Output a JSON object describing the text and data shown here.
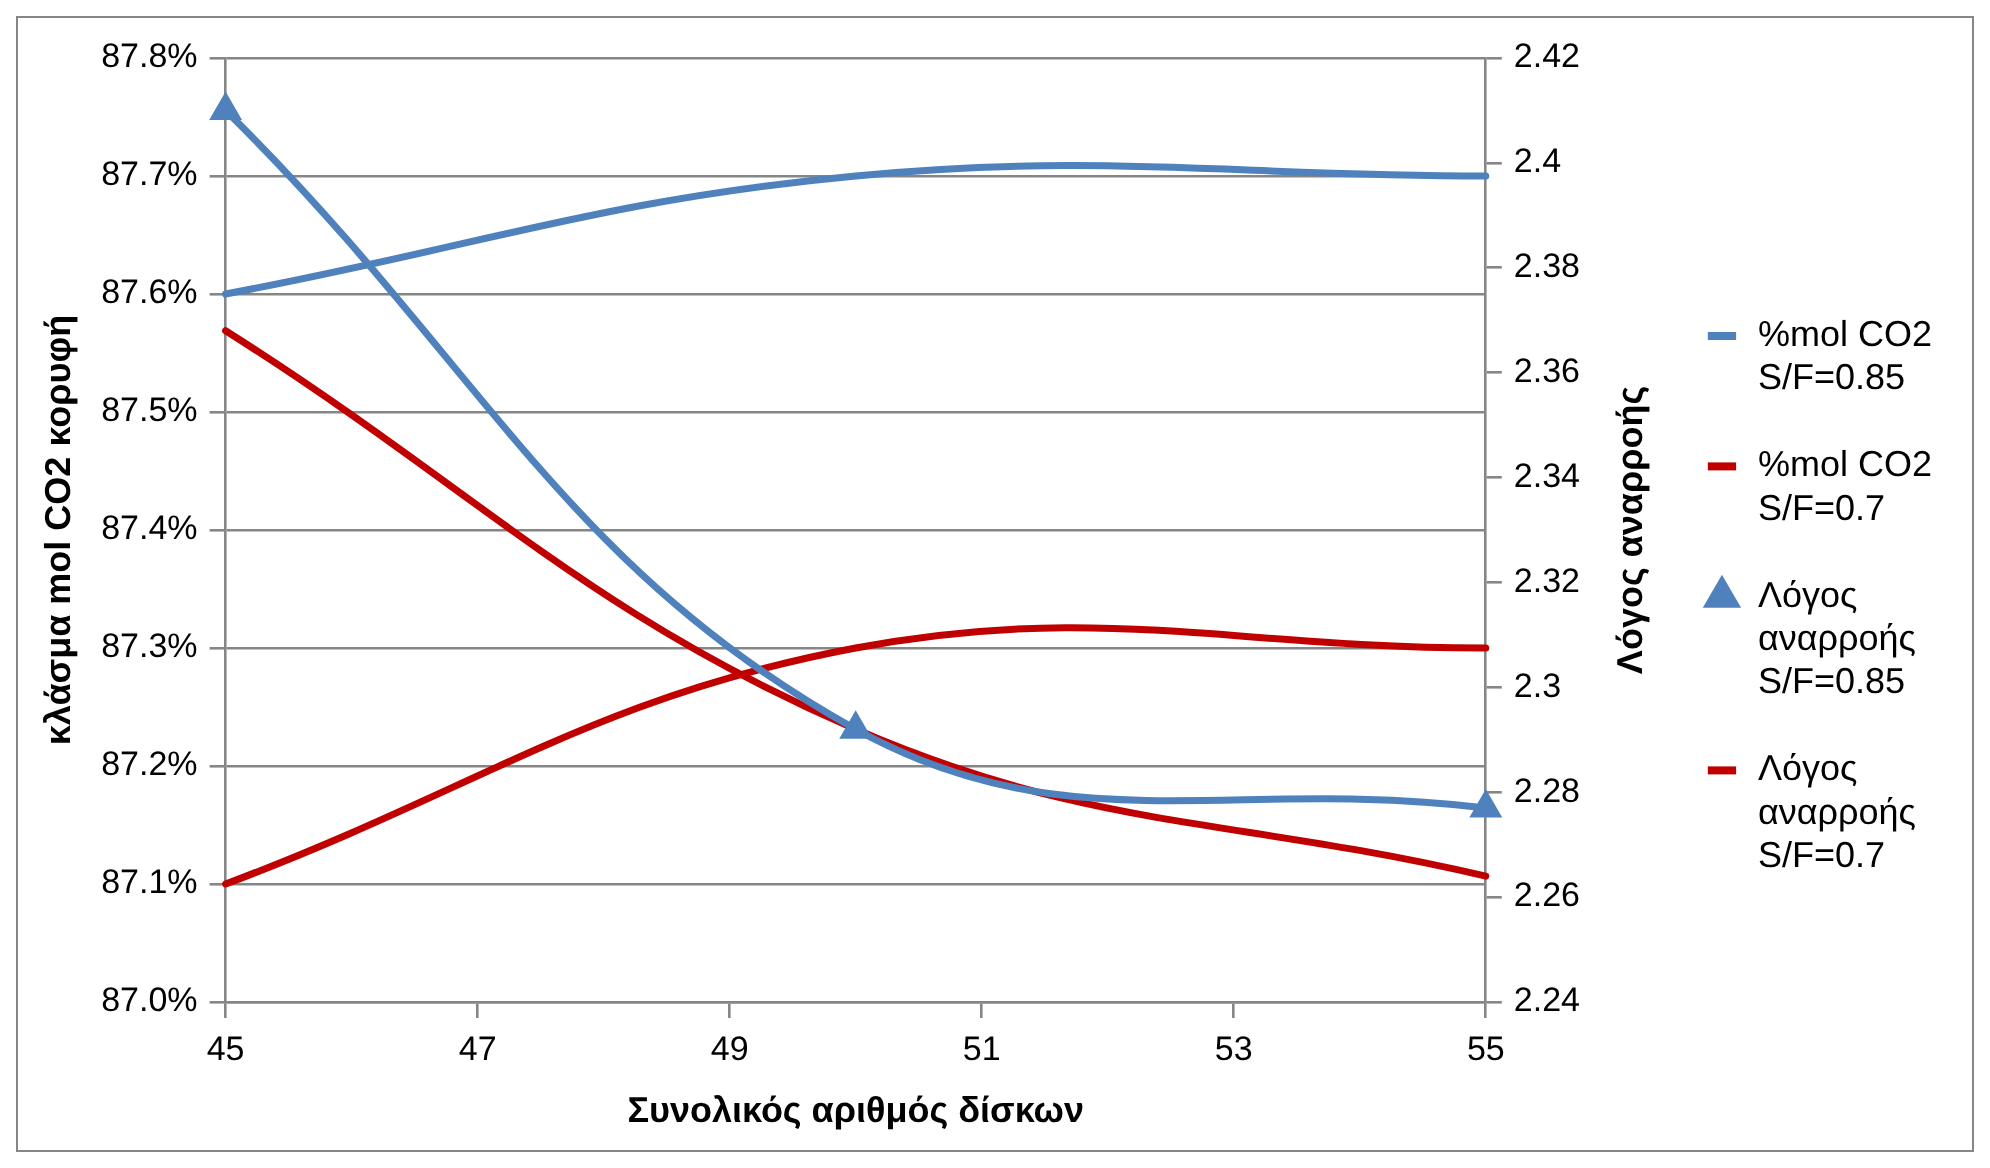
{
  "chart_data": {
    "type": "line",
    "xlabel": "Συνολικός αριθμός δίσκων",
    "ylabel": "κλάσμα mol CO2 κορυφή",
    "y2label": "Λόγος αναρροής",
    "x": [
      45,
      50,
      55
    ],
    "series": [
      {
        "name": "%mol CO2 S/F=0.85",
        "color": "#4f81bd",
        "values": [
          87.6,
          87.7,
          87.7
        ]
      },
      {
        "name": "%mol CO2 S/F=0.7",
        "color": "#c00000",
        "values": [
          87.1,
          87.3,
          87.3
        ]
      },
      {
        "name": "Λόγος αναρροής S/F=0.85",
        "color": "#4f81bd",
        "values": [
          2.41,
          2.292,
          2.277
        ],
        "axis": "y2",
        "marker": "triangle"
      },
      {
        "name": "Λόγος αναρροής S/F=0.7",
        "color": "#c00000",
        "values": [
          2.368,
          2.292,
          2.264
        ],
        "axis": "y2"
      }
    ],
    "xlim": [
      45,
      55
    ],
    "xticks": [
      45,
      47,
      49,
      51,
      53,
      55
    ],
    "ylim": [
      87.0,
      87.8
    ],
    "yticks": [
      {
        "value": 87.0,
        "label": "87.0%"
      },
      {
        "value": 87.1,
        "label": "87.1%"
      },
      {
        "value": 87.2,
        "label": "87.2%"
      },
      {
        "value": 87.3,
        "label": "87.3%"
      },
      {
        "value": 87.4,
        "label": "87.4%"
      },
      {
        "value": 87.5,
        "label": "87.5%"
      },
      {
        "value": 87.6,
        "label": "87.6%"
      },
      {
        "value": 87.7,
        "label": "87.7%"
      },
      {
        "value": 87.8,
        "label": "87.8%"
      }
    ],
    "y2lim": [
      2.24,
      2.42
    ],
    "y2ticks": [
      2.24,
      2.26,
      2.28,
      2.3,
      2.32,
      2.34,
      2.36,
      2.38,
      2.4,
      2.42
    ],
    "grid": "y",
    "legend": "right",
    "marker": "none",
    "line_style": "solid"
  }
}
